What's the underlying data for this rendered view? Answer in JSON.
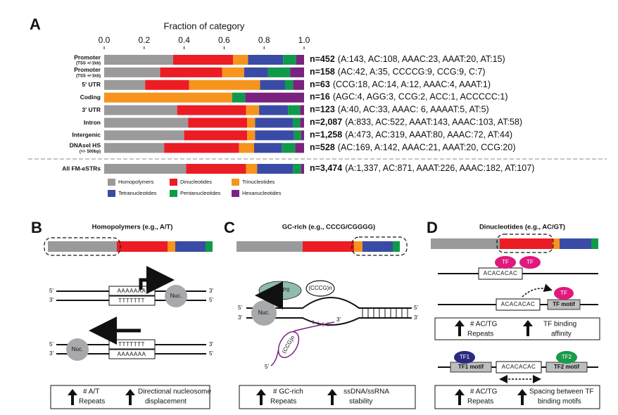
{
  "chart_data": {
    "type": "bar",
    "orientation": "horizontal",
    "stacked": true,
    "panel_label": "A",
    "xlabel": "Fraction of category",
    "categories": [
      "Promoter",
      "Promoter",
      "5' UTR",
      "Coding",
      "3' UTR",
      "Intron",
      "Intergenic",
      "DNAseI HS",
      "All FM-eSTRs"
    ],
    "category_sublabels": [
      "(TSS +/-1kb)",
      "(TSS +/-1kb)",
      null,
      null,
      null,
      null,
      null,
      "(+/- 500bp)",
      null
    ],
    "xlim": [
      0,
      1
    ],
    "xticks": [
      {
        "value": 0,
        "label": "0.0"
      },
      0.2,
      0.4,
      0.6,
      0.8,
      {
        "value": 1,
        "label": "1.0"
      }
    ],
    "series": [
      {
        "name": "Homopolymers",
        "color": "#9a9a9a",
        "values": [
          0.345,
          0.28,
          0.205,
          0,
          0.365,
          0.42,
          0.4,
          0.3,
          0.41
        ]
      },
      {
        "name": "Dinucleotides",
        "color": "#ec1c24",
        "values": [
          0.3,
          0.31,
          0.22,
          0,
          0.345,
          0.295,
          0.315,
          0.375,
          0.3
        ]
      },
      {
        "name": "Trinucleotides",
        "color": "#f7941d",
        "values": [
          0.075,
          0.11,
          0.355,
          0.64,
          0.065,
          0.04,
          0.04,
          0.075,
          0.055
        ]
      },
      {
        "name": "Tetranucleotides",
        "color": "#3a4ba6",
        "values": [
          0.175,
          0.12,
          0.125,
          0,
          0.145,
          0.19,
          0.195,
          0.14,
          0.18
        ]
      },
      {
        "name": "Pentanucleotides",
        "color": "#0f9a4a",
        "values": [
          0.065,
          0.11,
          0.04,
          0.065,
          0.06,
          0.035,
          0.035,
          0.065,
          0.04
        ]
      },
      {
        "name": "Hexanucleotides",
        "color": "#7b2281",
        "values": [
          0.04,
          0.07,
          0.055,
          0.295,
          0.02,
          0.02,
          0.015,
          0.045,
          0.015
        ]
      }
    ],
    "n_labels": [
      "n=452",
      "n=158",
      "n=63",
      "n=16",
      "n=123",
      "n=2,087",
      "n=1,258",
      "n=528",
      "n=3,474"
    ],
    "n_details": [
      "(A:143, AC:108, AAAC:23, AAAT:20, AT:15)",
      "(AC:42, A:35, CCCCG:9, CCG:9, C:7)",
      "(CCG:18, AC:14, A:12, AAAC:4, AAAT:1)",
      "(AGC:4, AGG:3, CCG:2, ACC:1, ACCCCC:1)",
      "(A:40, AC:33, AAAC: 6, AAAAT:5, AT:5)",
      "(A:833, AC:522, AAAT:143, AAAC:103, AT:58)",
      "(A:473, AC:319, AAAT:80, AAAC:72, AT:44)",
      "(AC:169, A:142, AAAC:21, AAAT:20, CCG:20)",
      "(A:1,337, AC:871, AAAT:226, AAAC:182, AT:107)"
    ]
  },
  "panel_b": {
    "label": "B",
    "title": "Homopolymers (e.g., A/T)",
    "strand_ends": [
      "5'",
      "3'",
      "3'",
      "5'",
      "5'",
      "3'",
      "3'",
      "5'"
    ],
    "sequences": [
      "AAAAAAA",
      "TTTTTTT",
      "TTTTTTT",
      "AAAAAAA"
    ],
    "nucleosome": [
      "Nuc.",
      "Nuc."
    ],
    "effects": [
      [
        "# A/T",
        "Repeats"
      ],
      [
        "Directional nucleosome",
        "displacement"
      ]
    ]
  },
  "panel_c": {
    "label": "C",
    "title": "GC-rich (e.g., CCCG/CGGGG)",
    "polymerase": "RNAPII",
    "repeat_dna": "(CCCG)n",
    "repeat_rna": "(CCG)n",
    "nucleosome": "Nuc.",
    "strand_ends": [
      "5'",
      "3'",
      "5'",
      "3'",
      "3'",
      "5'"
    ],
    "effects": [
      [
        "# GC-rich",
        "Repeats"
      ],
      [
        "ssDNA/ssRNA",
        "stability"
      ]
    ]
  },
  "panel_d": {
    "label": "D",
    "title": "Dinucleotides (e.g., AC/GT)",
    "sequences": [
      "ACACACAC",
      "ACACACAC",
      "ACACACAC"
    ],
    "factors": [
      "TF",
      "TF",
      "TF",
      "TF1",
      "TF2"
    ],
    "motifs": [
      "TF motif",
      "TF1 motif",
      "TF2 motif"
    ],
    "effects": [
      [
        "# AC/TG",
        "Repeats"
      ],
      [
        "TF binding",
        "affinity"
      ],
      [
        "# AC/TG",
        "Repeats"
      ],
      [
        "Spacing between TF",
        "binding motifs"
      ]
    ]
  }
}
